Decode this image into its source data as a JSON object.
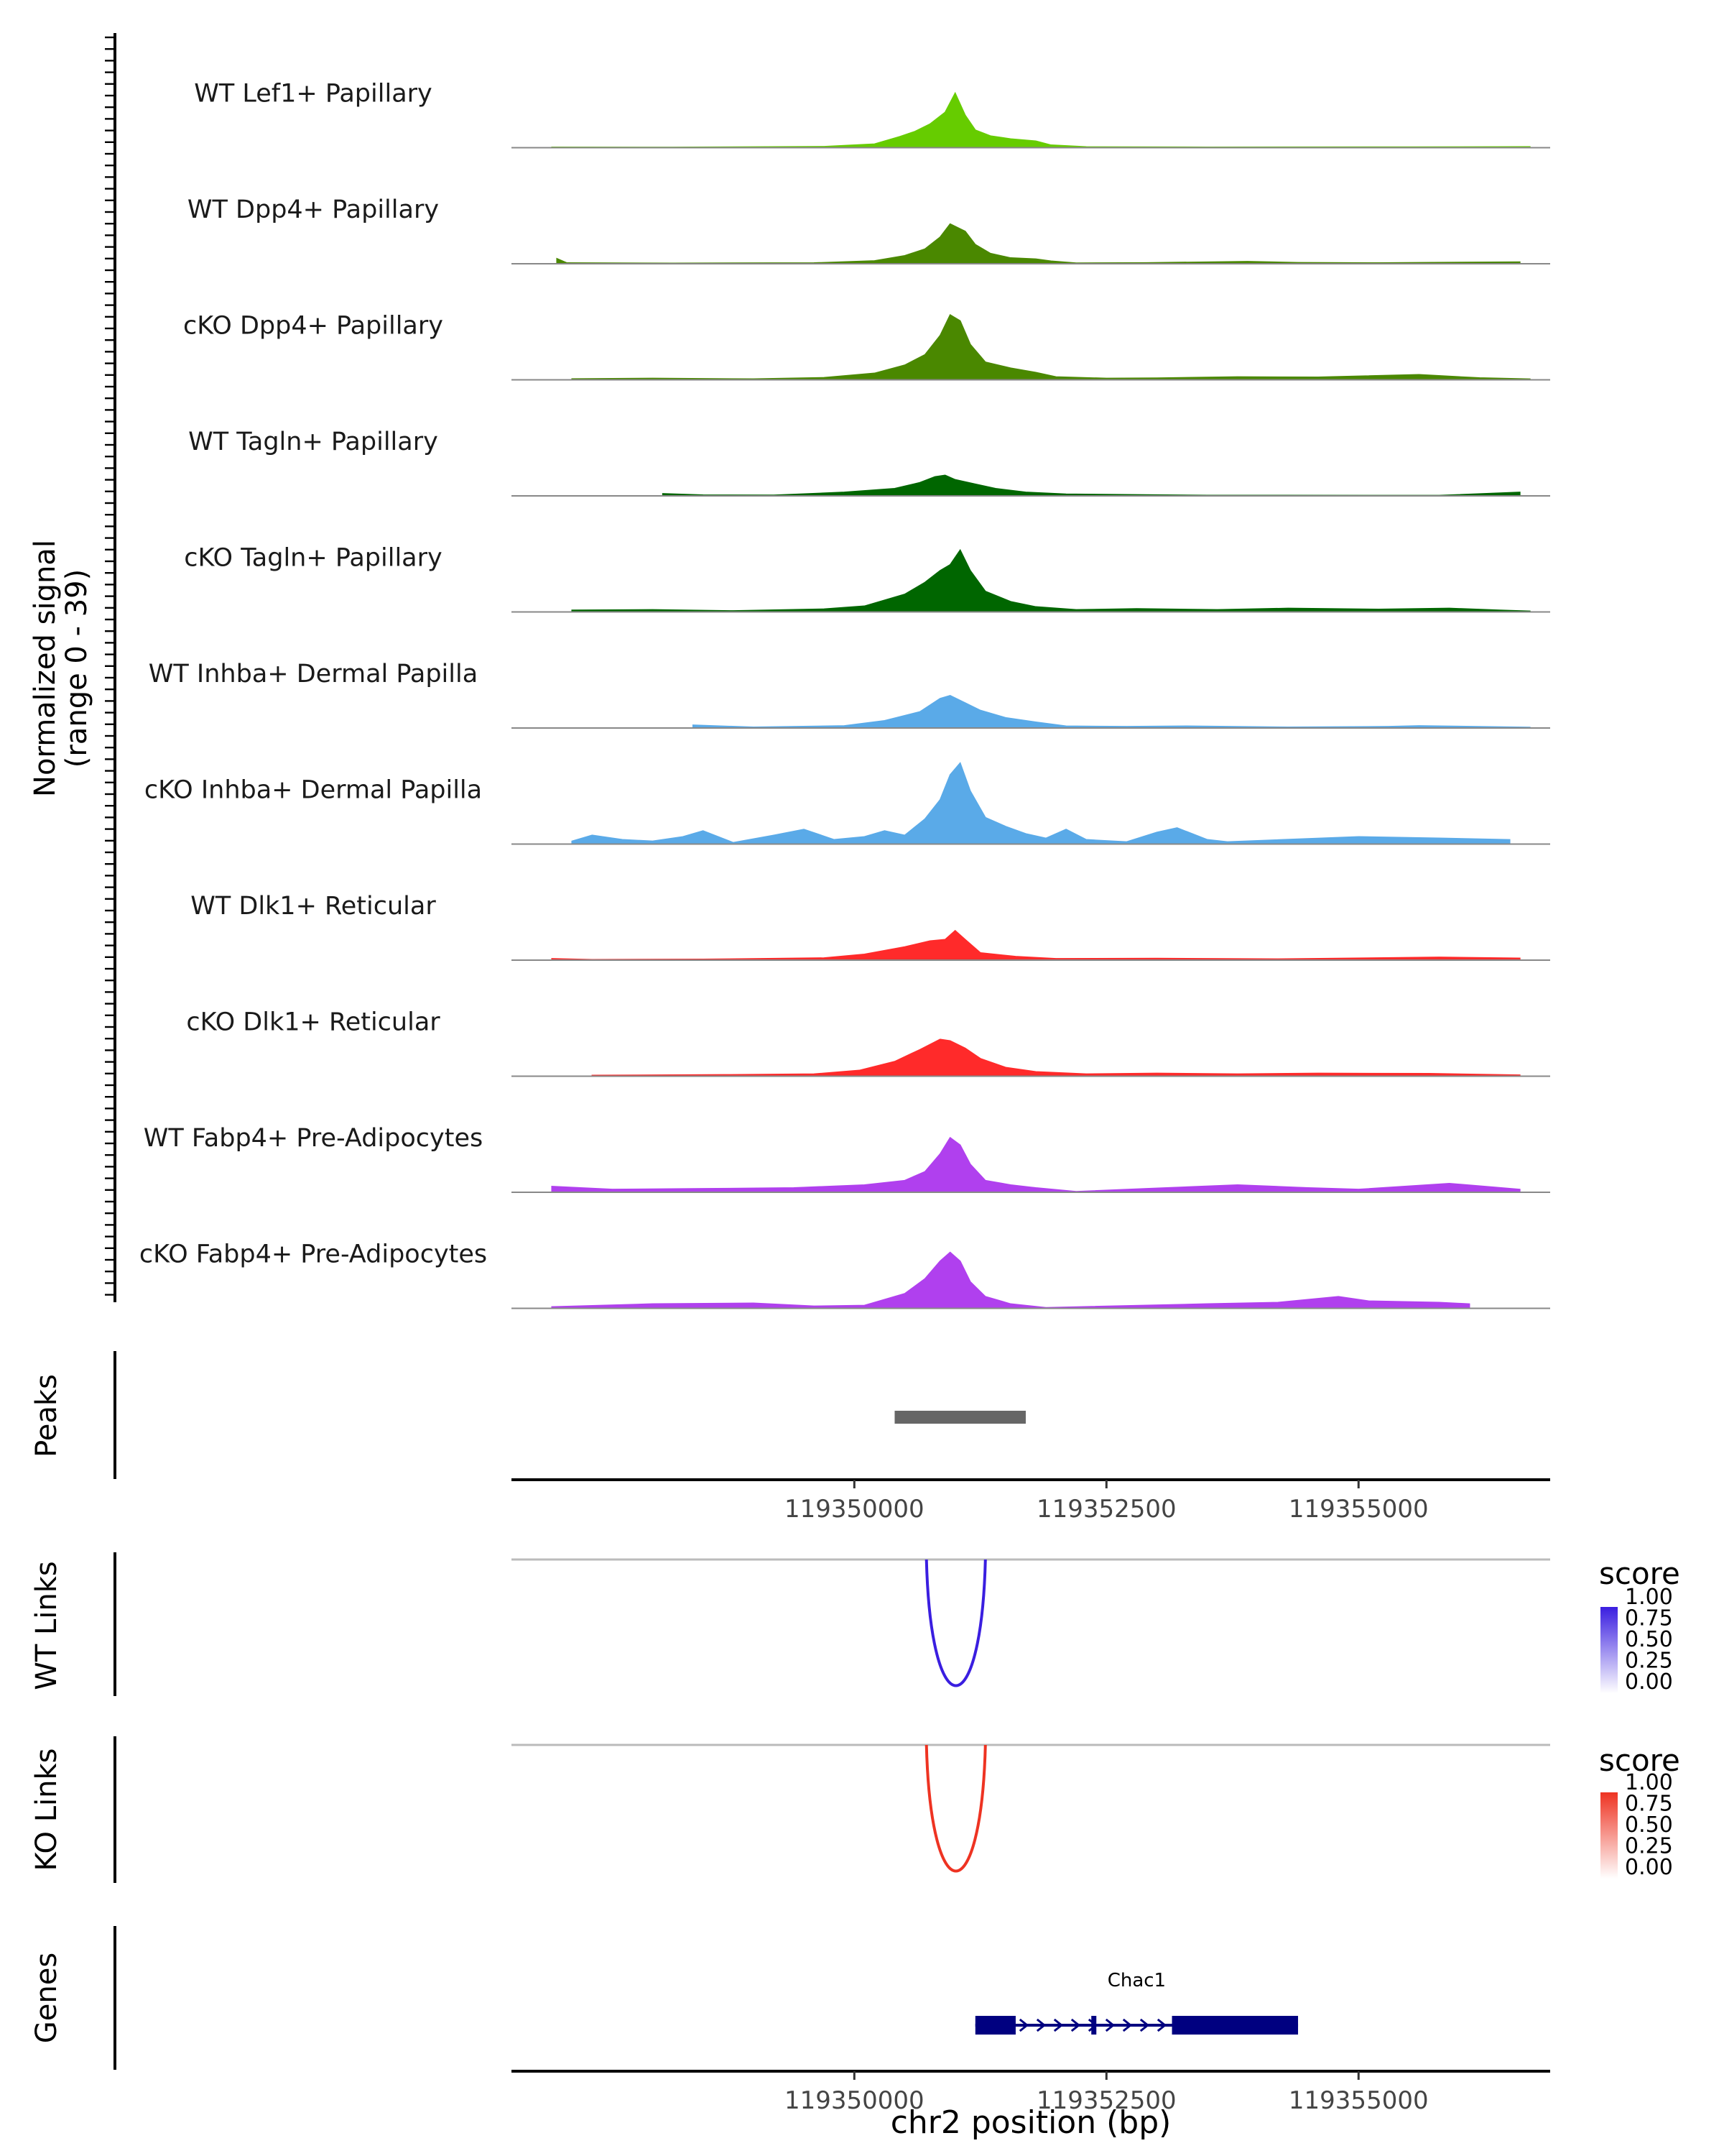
{
  "chart_data": [
    {
      "type": "area",
      "panel": "coverage",
      "ylabel": "Normalized signal",
      "ylabel_range": "(range 0 - 39)",
      "ylim": [
        0,
        39
      ],
      "xlim": [
        119346600,
        119356900
      ],
      "tracks": [
        {
          "name": "WT Lef1+ Papillary",
          "color": "#66cc00",
          "points": [
            [
              119347000,
              0.4
            ],
            [
              119348200,
              0.3
            ],
            [
              119349700,
              0.8
            ],
            [
              119350200,
              2.5
            ],
            [
              119350450,
              7.5
            ],
            [
              119350600,
              11
            ],
            [
              119350750,
              16
            ],
            [
              119350900,
              24
            ],
            [
              119351000,
              37
            ],
            [
              119351100,
              22
            ],
            [
              119351200,
              12
            ],
            [
              119351350,
              8
            ],
            [
              119351550,
              6
            ],
            [
              119351800,
              4.5
            ],
            [
              119351950,
              1.8
            ],
            [
              119352300,
              0.6
            ],
            [
              119353500,
              0.4
            ],
            [
              119355500,
              0.5
            ],
            [
              119356700,
              0.7
            ]
          ]
        },
        {
          "name": "WT Dpp4+ Papillary",
          "color": "#4a8800",
          "points": [
            [
              119347050,
              3.5
            ],
            [
              119347150,
              0.6
            ],
            [
              119348200,
              0.4
            ],
            [
              119349600,
              0.6
            ],
            [
              119350200,
              2
            ],
            [
              119350500,
              5.5
            ],
            [
              119350700,
              10
            ],
            [
              119350850,
              18
            ],
            [
              119350950,
              27
            ],
            [
              119351100,
              22
            ],
            [
              119351200,
              13
            ],
            [
              119351350,
              7
            ],
            [
              119351550,
              4
            ],
            [
              119351800,
              3.2
            ],
            [
              119351950,
              1.8
            ],
            [
              119352200,
              0.5
            ],
            [
              119352900,
              0.7
            ],
            [
              119353900,
              1.5
            ],
            [
              119354400,
              0.8
            ],
            [
              119355200,
              0.6
            ],
            [
              119356600,
              1.2
            ]
          ]
        },
        {
          "name": "cKO Dpp4+ Papillary",
          "color": "#4a8800",
          "points": [
            [
              119347200,
              0.7
            ],
            [
              119348000,
              1
            ],
            [
              119349000,
              0.6
            ],
            [
              119349700,
              1.5
            ],
            [
              119350200,
              4.5
            ],
            [
              119350500,
              10
            ],
            [
              119350700,
              17
            ],
            [
              119350850,
              30
            ],
            [
              119350950,
              44
            ],
            [
              119351050,
              40
            ],
            [
              119351150,
              24
            ],
            [
              119351300,
              12
            ],
            [
              119351550,
              8
            ],
            [
              119351800,
              5
            ],
            [
              119352000,
              2
            ],
            [
              119352500,
              1
            ],
            [
              119353000,
              1.2
            ],
            [
              119353800,
              2
            ],
            [
              119354600,
              1.8
            ],
            [
              119355600,
              3.5
            ],
            [
              119356200,
              1.3
            ],
            [
              119356700,
              0.6
            ]
          ]
        },
        {
          "name": "WT Tagln+ Papillary",
          "color": "#006600",
          "points": [
            [
              119348100,
              1.5
            ],
            [
              119348500,
              0.6
            ],
            [
              119349200,
              0.5
            ],
            [
              119349900,
              2.5
            ],
            [
              119350400,
              5
            ],
            [
              119350650,
              9
            ],
            [
              119350800,
              13
            ],
            [
              119350900,
              14
            ],
            [
              119351000,
              11
            ],
            [
              119351200,
              8
            ],
            [
              119351400,
              5
            ],
            [
              119351700,
              2.5
            ],
            [
              119352100,
              1.2
            ],
            [
              119353500,
              0.4
            ],
            [
              119355800,
              0.3
            ],
            [
              119356600,
              2.5
            ]
          ]
        },
        {
          "name": "cKO Tagln+ Papillary",
          "color": "#006600",
          "points": [
            [
              119347200,
              1.2
            ],
            [
              119348000,
              1.5
            ],
            [
              119348800,
              0.8
            ],
            [
              119349700,
              2
            ],
            [
              119350100,
              4
            ],
            [
              119350500,
              12
            ],
            [
              119350700,
              20
            ],
            [
              119350850,
              28
            ],
            [
              119350950,
              32
            ],
            [
              119351050,
              42
            ],
            [
              119351150,
              28
            ],
            [
              119351300,
              14
            ],
            [
              119351550,
              7
            ],
            [
              119351800,
              3.5
            ],
            [
              119352200,
              1.5
            ],
            [
              119352800,
              2.2
            ],
            [
              119353600,
              1.5
            ],
            [
              119354300,
              2.5
            ],
            [
              119355200,
              1.8
            ],
            [
              119355900,
              2.5
            ],
            [
              119356400,
              1.2
            ],
            [
              119356700,
              0.6
            ]
          ]
        },
        {
          "name": "WT Inhba+ Dermal Papilla",
          "color": "#5aaae8",
          "points": [
            [
              119348400,
              2
            ],
            [
              119349000,
              0.6
            ],
            [
              119349900,
              1.5
            ],
            [
              119350300,
              5
            ],
            [
              119350650,
              11
            ],
            [
              119350850,
              20
            ],
            [
              119350950,
              22
            ],
            [
              119351100,
              17
            ],
            [
              119351250,
              12
            ],
            [
              119351500,
              7
            ],
            [
              119351800,
              4
            ],
            [
              119352100,
              1.3
            ],
            [
              119352700,
              1
            ],
            [
              119353300,
              1.3
            ],
            [
              119354300,
              0.6
            ],
            [
              119355300,
              1
            ],
            [
              119355600,
              1.5
            ],
            [
              119356700,
              0.5
            ]
          ]
        },
        {
          "name": "cKO Inhba+ Dermal Papilla",
          "color": "#5aaae8",
          "points": [
            [
              119347200,
              2
            ],
            [
              119347400,
              6
            ],
            [
              119347700,
              3
            ],
            [
              119348000,
              2
            ],
            [
              119348300,
              5
            ],
            [
              119348500,
              9
            ],
            [
              119348800,
              1
            ],
            [
              119349200,
              6
            ],
            [
              119349500,
              10
            ],
            [
              119349800,
              3
            ],
            [
              119350100,
              5
            ],
            [
              119350300,
              9
            ],
            [
              119350500,
              6
            ],
            [
              119350700,
              17
            ],
            [
              119350850,
              30
            ],
            [
              119350950,
              47
            ],
            [
              119351050,
              55
            ],
            [
              119351150,
              36
            ],
            [
              119351300,
              18
            ],
            [
              119351500,
              12
            ],
            [
              119351700,
              7
            ],
            [
              119351900,
              4
            ],
            [
              119352100,
              10
            ],
            [
              119352300,
              3
            ],
            [
              119352700,
              1.5
            ],
            [
              119353000,
              8
            ],
            [
              119353200,
              11
            ],
            [
              119353500,
              3
            ],
            [
              119353700,
              1.5
            ],
            [
              119355000,
              5
            ],
            [
              119355800,
              4
            ],
            [
              119356500,
              3
            ]
          ]
        },
        {
          "name": "WT Dlk1+ Reticular",
          "color": "#ff2a2a",
          "points": [
            [
              119347000,
              1
            ],
            [
              119347400,
              0.4
            ],
            [
              119348500,
              0.6
            ],
            [
              119349700,
              1.5
            ],
            [
              119350100,
              4
            ],
            [
              119350500,
              9
            ],
            [
              119350750,
              13
            ],
            [
              119350900,
              14
            ],
            [
              119351000,
              20
            ],
            [
              119351100,
              14
            ],
            [
              119351250,
              5
            ],
            [
              119351600,
              2.5
            ],
            [
              119352000,
              1
            ],
            [
              119353000,
              1.2
            ],
            [
              119354200,
              0.8
            ],
            [
              119355800,
              2
            ],
            [
              119356600,
              1.3
            ]
          ]
        },
        {
          "name": "cKO Dlk1+ Reticular",
          "color": "#ff2a2a",
          "points": [
            [
              119347400,
              0.6
            ],
            [
              119348700,
              1
            ],
            [
              119349600,
              1.5
            ],
            [
              119350050,
              4
            ],
            [
              119350400,
              10
            ],
            [
              119350650,
              18
            ],
            [
              119350850,
              25
            ],
            [
              119350950,
              24
            ],
            [
              119351100,
              19
            ],
            [
              119351250,
              12
            ],
            [
              119351500,
              6
            ],
            [
              119351800,
              3
            ],
            [
              119352300,
              1.5
            ],
            [
              119353000,
              2
            ],
            [
              119353800,
              1.5
            ],
            [
              119354600,
              2
            ],
            [
              119355700,
              1.8
            ],
            [
              119356600,
              0.8
            ]
          ]
        },
        {
          "name": "WT Fabp4+ Pre-Adipocytes",
          "color": "#b040ee",
          "points": [
            [
              119347000,
              4
            ],
            [
              119347600,
              2
            ],
            [
              119348500,
              2.5
            ],
            [
              119349400,
              3
            ],
            [
              119350100,
              5
            ],
            [
              119350500,
              8
            ],
            [
              119350700,
              14
            ],
            [
              119350850,
              26
            ],
            [
              119350950,
              37
            ],
            [
              119351050,
              32
            ],
            [
              119351150,
              19
            ],
            [
              119351300,
              8
            ],
            [
              119351550,
              5
            ],
            [
              119351800,
              3
            ],
            [
              119352200,
              0.5
            ],
            [
              119352900,
              2.5
            ],
            [
              119353800,
              5
            ],
            [
              119354500,
              3
            ],
            [
              119355000,
              2
            ],
            [
              119355900,
              6
            ],
            [
              119356600,
              2
            ]
          ]
        },
        {
          "name": "cKO Fabp4+ Pre-Adipocytes",
          "color": "#b040ee",
          "points": [
            [
              119347000,
              1
            ],
            [
              119348000,
              3
            ],
            [
              119349000,
              3.5
            ],
            [
              119349600,
              1.5
            ],
            [
              119350100,
              2
            ],
            [
              119350500,
              10
            ],
            [
              119350700,
              20
            ],
            [
              119350850,
              32
            ],
            [
              119350950,
              38
            ],
            [
              119351050,
              32
            ],
            [
              119351150,
              18
            ],
            [
              119351300,
              8
            ],
            [
              119351550,
              3
            ],
            [
              119351900,
              0.5
            ],
            [
              119353500,
              3
            ],
            [
              119354200,
              4
            ],
            [
              119354800,
              8
            ],
            [
              119355100,
              5
            ],
            [
              119355800,
              4
            ],
            [
              119356100,
              3
            ]
          ]
        }
      ]
    },
    {
      "type": "interval",
      "panel": "peaks",
      "ylabel": "Peaks",
      "intervals": [
        {
          "start": 119350400,
          "end": 119351700,
          "color": "#666666"
        }
      ],
      "xticks": [
        119350000,
        119352500,
        119355000
      ],
      "xtick_labels": [
        "119350000",
        "119352500",
        "119355000"
      ]
    },
    {
      "type": "arc",
      "panel": "wt_links",
      "ylabel": "WT Links",
      "links": [
        {
          "start": 119351000,
          "end": 119351200,
          "score": 0.88,
          "color": "#3a1ee0"
        }
      ],
      "legend": {
        "title": "score",
        "labels": [
          "1.00",
          "0.75",
          "0.50",
          "0.25",
          "0.00"
        ],
        "colors": [
          "#3a1ee0",
          "#ffffff"
        ]
      }
    },
    {
      "type": "arc",
      "panel": "ko_links",
      "ylabel": "KO Links",
      "links": [
        {
          "start": 119351000,
          "end": 119351200,
          "score": 0.8,
          "color": "#ee3322"
        }
      ],
      "legend": {
        "title": "score",
        "labels": [
          "1.00",
          "0.75",
          "0.50",
          "0.25",
          "0.00"
        ],
        "colors": [
          "#ee3322",
          "#ffffff"
        ]
      }
    },
    {
      "type": "gene_model",
      "panel": "genes",
      "ylabel": "Genes",
      "gene": "Chac1",
      "color": "#000080",
      "gene_start": 119351200,
      "gene_end": 119354400,
      "exons": [
        [
          119351200,
          119351600
        ],
        [
          119352350,
          119352400
        ],
        [
          119353150,
          119354400
        ]
      ],
      "strand": "+",
      "xticks": [
        119350000,
        119352500,
        119355000
      ],
      "xtick_labels": [
        "119350000",
        "119352500",
        "119355000"
      ],
      "xlabel": "chr2 position (bp)"
    }
  ]
}
